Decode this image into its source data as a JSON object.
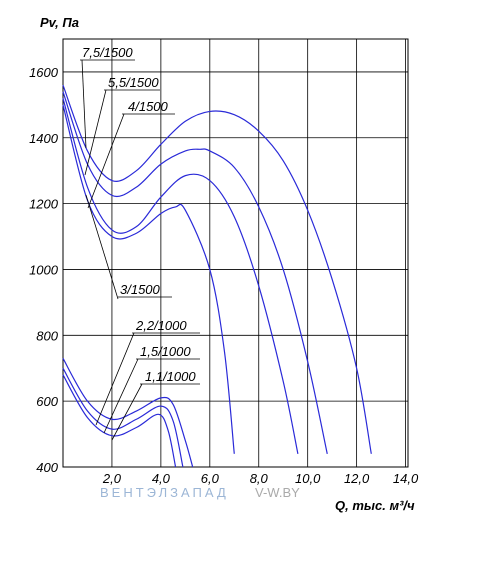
{
  "chart_data": {
    "type": "line",
    "y_label": "Pv, Па",
    "x_label": "Q, тыс. м³/ч",
    "watermark": [
      "ВЕНТЭЛЗАПАД",
      "V-W.BY"
    ],
    "xlim": [
      0,
      14.1
    ],
    "ylim": [
      400,
      1700
    ],
    "xticks": [
      {
        "value": 2,
        "label": "2,0"
      },
      {
        "value": 4,
        "label": "4,0"
      },
      {
        "value": 6,
        "label": "6,0"
      },
      {
        "value": 8,
        "label": "8,0"
      },
      {
        "value": 10,
        "label": "10,0"
      },
      {
        "value": 12,
        "label": "12,0"
      },
      {
        "value": 14,
        "label": "14,0"
      }
    ],
    "yticks": [
      400,
      600,
      800,
      1000,
      1200,
      1400,
      1600
    ],
    "grid": true,
    "series": [
      {
        "name": "7,5/1500",
        "color": "#2a2ad8",
        "x": [
          0,
          1,
          2,
          3,
          4,
          5,
          6,
          7,
          8,
          9,
          10,
          11,
          12,
          12.6
        ],
        "values": [
          1560,
          1360,
          1270,
          1300,
          1380,
          1450,
          1480,
          1470,
          1420,
          1330,
          1180,
          970,
          700,
          440
        ]
      },
      {
        "name": "5,5/1500",
        "color": "#2a2ad8",
        "x": [
          0,
          1,
          2,
          3,
          4,
          5,
          5.6,
          6,
          7,
          8,
          9,
          10,
          10.8
        ],
        "values": [
          1540,
          1320,
          1225,
          1250,
          1320,
          1360,
          1365,
          1360,
          1310,
          1190,
          1000,
          720,
          440
        ]
      },
      {
        "name": "4/1500",
        "color": "#2a2ad8",
        "x": [
          0,
          1,
          2,
          3,
          4,
          5,
          6,
          7,
          8,
          9,
          9.6
        ],
        "values": [
          1520,
          1250,
          1120,
          1130,
          1220,
          1285,
          1270,
          1160,
          950,
          660,
          440
        ]
      },
      {
        "name": "3/1500",
        "color": "#2a2ad8",
        "x": [
          0,
          1,
          2,
          3,
          4,
          4.6,
          5,
          6,
          6.6,
          7
        ],
        "values": [
          1500,
          1210,
          1100,
          1110,
          1170,
          1190,
          1180,
          1000,
          750,
          440
        ]
      },
      {
        "name": "2,2/1000",
        "color": "#2a2ad8",
        "x": [
          0,
          1,
          2,
          3,
          4,
          4.5,
          5,
          5.3
        ],
        "values": [
          730,
          600,
          545,
          570,
          610,
          590,
          480,
          400
        ]
      },
      {
        "name": "1,5/1000",
        "color": "#2a2ad8",
        "x": [
          0,
          1,
          2,
          3,
          4,
          4.5,
          4.9
        ],
        "values": [
          700,
          570,
          515,
          545,
          585,
          540,
          400
        ]
      },
      {
        "name": "1,1/1000",
        "color": "#2a2ad8",
        "x": [
          0,
          1,
          2,
          3,
          3.9,
          4.3,
          4.6
        ],
        "values": [
          680,
          550,
          495,
          520,
          560,
          510,
          400
        ]
      }
    ]
  }
}
